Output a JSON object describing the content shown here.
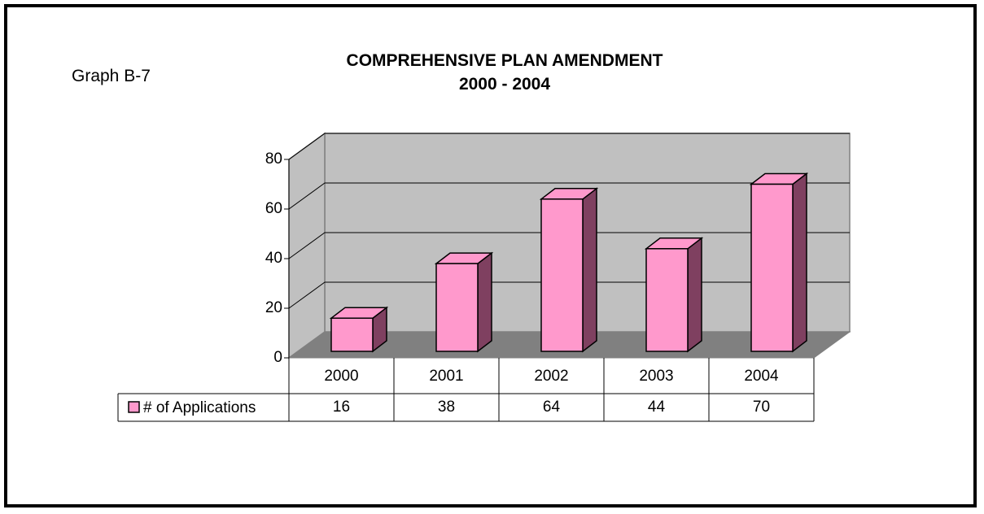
{
  "graph_label": "Graph B-7",
  "title_line1": "COMPREHENSIVE PLAN AMENDMENT",
  "title_line2": "2000 - 2004",
  "chart_data": {
    "type": "bar",
    "title": "COMPREHENSIVE PLAN AMENDMENT 2000 - 2004",
    "categories": [
      "2000",
      "2001",
      "2002",
      "2003",
      "2004"
    ],
    "series": [
      {
        "name": "# of Applications",
        "values": [
          16,
          38,
          64,
          44,
          70
        ]
      }
    ],
    "ylim": [
      0,
      80
    ],
    "yticks": [
      "0",
      "20",
      "40",
      "60",
      "80"
    ],
    "grid": true,
    "legend": "data-table-left",
    "colors": {
      "bar_front": "#ff99cc",
      "bar_side": "#7f4060",
      "wall": "#c0c0c0",
      "floor": "#808080"
    }
  }
}
